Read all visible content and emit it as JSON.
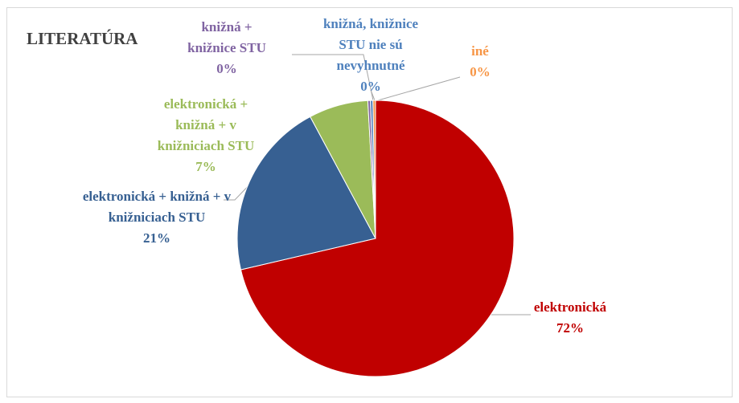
{
  "chart_data": {
    "type": "pie",
    "title": "LITERATÚRA",
    "categories": [
      "elektronická",
      "elektronická + knižná + v\nknižniciach STU",
      "elektronická +\nknižná + v\nknižniciach STU",
      "knižná +\nknižnice STU",
      "knižná, knižnice\nSTU nie sú\nnevyhnutné",
      "iné"
    ],
    "values": [
      72,
      21,
      7,
      0.3,
      0.3,
      0.3
    ],
    "value_labels": [
      "72%",
      "21%",
      "7%",
      "0%",
      "0%",
      "0%"
    ],
    "colors": [
      "#c00000",
      "#376092",
      "#9bbb59",
      "#8064a2",
      "#4f81bd",
      "#f79646"
    ]
  }
}
